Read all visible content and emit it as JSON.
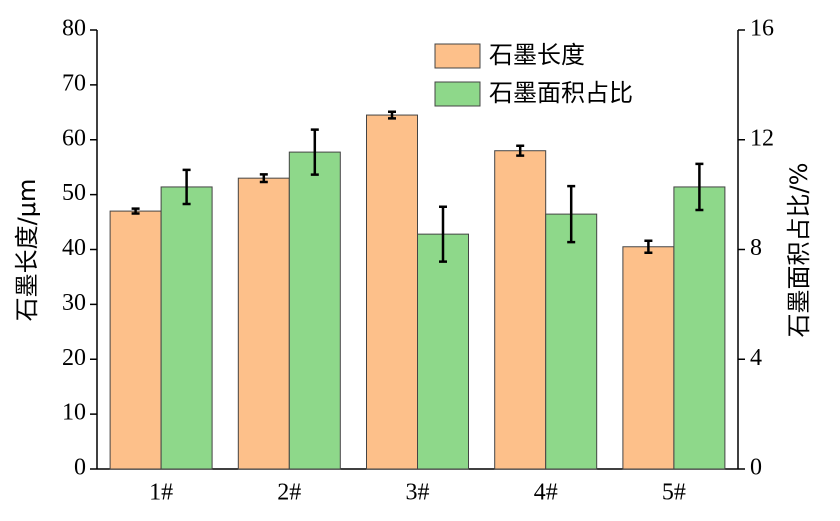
{
  "chart_data": {
    "type": "bar",
    "categories": [
      "1#",
      "2#",
      "3#",
      "4#",
      "5#"
    ],
    "ylabel": "石墨长度/μm",
    "y2label": "石墨面积占比/%",
    "ylim": [
      0,
      80
    ],
    "yticks": [
      0,
      10,
      20,
      30,
      40,
      50,
      60,
      70,
      80
    ],
    "y2lim": [
      0,
      16
    ],
    "y2ticks": [
      0,
      4,
      8,
      12,
      16
    ],
    "legend": "top-right",
    "series": [
      {
        "name": "石墨长度",
        "color": "#fdc08a",
        "values": [
          47,
          53,
          64.5,
          58,
          40.5
        ],
        "errors": [
          0.45,
          0.7,
          0.6,
          0.9,
          1.1
        ]
      },
      {
        "name": "石墨面积占比",
        "color": "#8ed88a",
        "axis": "y2",
        "values": [
          10.28,
          11.55,
          8.56,
          9.29,
          10.28
        ],
        "errors": [
          0.62,
          0.82,
          1.0,
          1.02,
          0.84
        ]
      }
    ]
  }
}
